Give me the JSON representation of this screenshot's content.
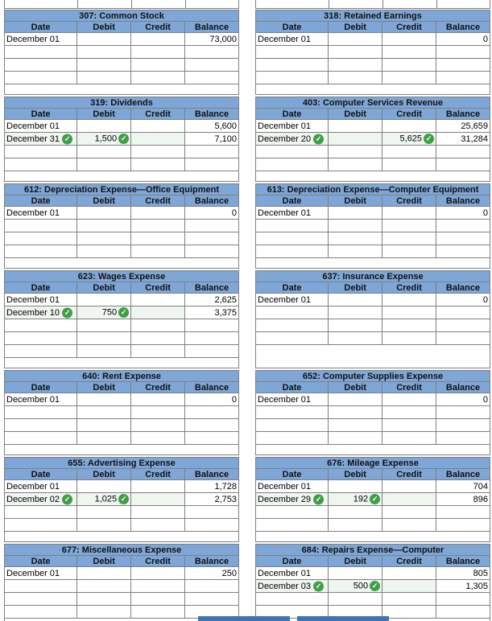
{
  "colors": {
    "header_blue": "#7EA7D8",
    "cell_border_gray": "#7f7f7f",
    "outer_border_gray": "#575757",
    "check_green": "#3F9F46",
    "checked_row_tint": "#EFF5EF",
    "button_blue": "#3E73B5"
  },
  "icons": {
    "check": "✓"
  },
  "columns": [
    "Date",
    "Debit",
    "Credit",
    "Balance"
  ],
  "ledgers": [
    {
      "id": "307",
      "title": "307: Common Stock",
      "rows": [
        {
          "date": "December 01",
          "balance": "73,000"
        },
        {},
        {},
        {}
      ]
    },
    {
      "id": "318",
      "title": "318: Retained Earnings",
      "rows": [
        {
          "date": "December 01",
          "balance": "0"
        },
        {},
        {},
        {}
      ]
    },
    {
      "id": "319",
      "title": "319: Dividends",
      "rows": [
        {
          "date": "December 01",
          "balance": "5,600"
        },
        {
          "date": "December 31",
          "date_check": true,
          "debit": "1,500",
          "debit_check": true,
          "balance": "7,100",
          "checked": true
        },
        {},
        {}
      ]
    },
    {
      "id": "403",
      "title": "403: Computer Services Revenue",
      "rows": [
        {
          "date": "December 01",
          "balance": "25,659"
        },
        {
          "date": "December 20",
          "date_check": true,
          "credit": "5,625",
          "credit_check": true,
          "balance": "31,284",
          "checked": true
        },
        {},
        {}
      ]
    },
    {
      "id": "612",
      "title": "612: Depreciation Expense—Office Equipment",
      "rows": [
        {
          "date": "December 01",
          "balance": "0"
        },
        {},
        {},
        {}
      ]
    },
    {
      "id": "613",
      "title": "613: Depreciation Expense—Computer Equipment",
      "rows": [
        {
          "date": "December 01",
          "balance": "0"
        },
        {},
        {},
        {}
      ]
    },
    {
      "id": "623",
      "title": "623: Wages Expense",
      "rows": [
        {
          "date": "December 01",
          "balance": "2,625"
        },
        {
          "date": "December 10",
          "date_check": true,
          "debit": "750",
          "debit_check": true,
          "balance": "3,375",
          "checked": true
        },
        {},
        {},
        {}
      ]
    },
    {
      "id": "637",
      "title": "637: Insurance Expense",
      "tall_footer": true,
      "rows": [
        {
          "date": "December 01",
          "balance": "0"
        },
        {},
        {},
        {}
      ]
    },
    {
      "id": "640",
      "title": "640: Rent Expense",
      "rows": [
        {
          "date": "December 01",
          "balance": "0"
        },
        {},
        {},
        {}
      ]
    },
    {
      "id": "652",
      "title": "652: Computer Supplies Expense",
      "rows": [
        {
          "date": "December 01",
          "balance": "0"
        },
        {},
        {},
        {}
      ]
    },
    {
      "id": "655",
      "title": "655: Advertising Expense",
      "rows": [
        {
          "date": "December 01",
          "balance": "1,728"
        },
        {
          "date": "December 02",
          "date_check": true,
          "debit": "1,025",
          "debit_check": true,
          "balance": "2,753",
          "checked": true
        },
        {},
        {}
      ]
    },
    {
      "id": "676",
      "title": "676: Mileage Expense",
      "rows": [
        {
          "date": "December 01",
          "balance": "704"
        },
        {
          "date": "December 29",
          "date_check": true,
          "debit": "192",
          "debit_check": true,
          "balance": "896",
          "checked": true
        },
        {},
        {}
      ]
    },
    {
      "id": "677",
      "title": "677: Miscellaneous Expense",
      "rows": [
        {
          "date": "December 01",
          "balance": "250"
        },
        {},
        {},
        {}
      ]
    },
    {
      "id": "684",
      "title": "684: Repairs Expense—Computer",
      "rows": [
        {
          "date": "December 01",
          "balance": "805"
        },
        {
          "date": "December 03",
          "date_check": true,
          "debit": "500",
          "debit_check": true,
          "balance": "1,305",
          "checked": true
        },
        {},
        {}
      ]
    }
  ],
  "bottom_buttons": [
    {
      "name": "bottom-button-left",
      "label": ""
    },
    {
      "name": "bottom-button-right",
      "label": ""
    }
  ]
}
